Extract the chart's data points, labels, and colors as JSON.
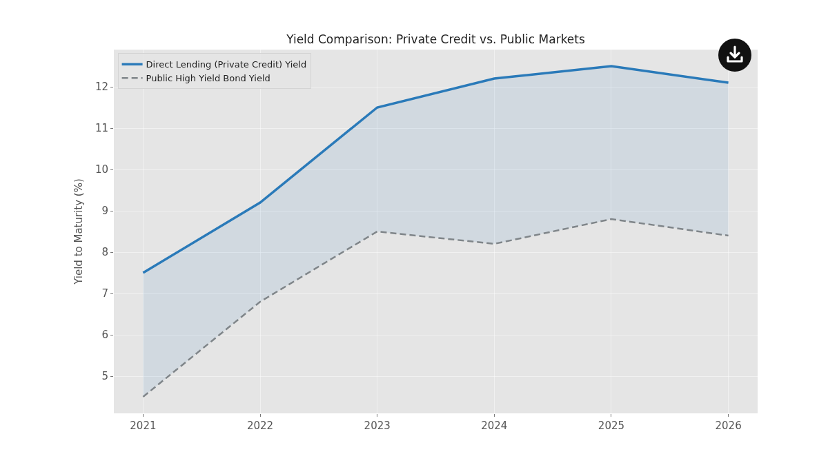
{
  "chart_data": {
    "type": "line",
    "title": "Yield Comparison: Private Credit vs. Public Markets",
    "ylabel": "Yield to Maturity (%)",
    "x": [
      2021,
      2022,
      2023,
      2024,
      2025,
      2026
    ],
    "series": [
      {
        "name": "Direct Lending (Private Credit) Yield",
        "color": "#2a7ab9",
        "line_style": "solid",
        "values": [
          7.5,
          9.2,
          11.5,
          12.2,
          12.5,
          12.1
        ],
        "lower": [
          4.5,
          6.8,
          8.5,
          8.2,
          8.8,
          8.4
        ],
        "upper": [
          7.5,
          9.2,
          11.5,
          12.2,
          12.5,
          12.1
        ]
      },
      {
        "name": "Public High Yield Bond Yield",
        "color": "#7f8589",
        "line_style": "dashed",
        "values": [
          4.5,
          6.8,
          8.5,
          8.2,
          8.8,
          8.4
        ]
      }
    ],
    "xlim": [
      2020.75,
      2026.25
    ],
    "xticks": [
      2021,
      2022,
      2023,
      2024,
      2025,
      2026
    ],
    "ylim": [
      4.1,
      12.9
    ],
    "yticks": [
      5,
      6,
      7,
      8,
      9,
      10,
      11,
      12
    ],
    "grid": true,
    "legend": "top left"
  }
}
